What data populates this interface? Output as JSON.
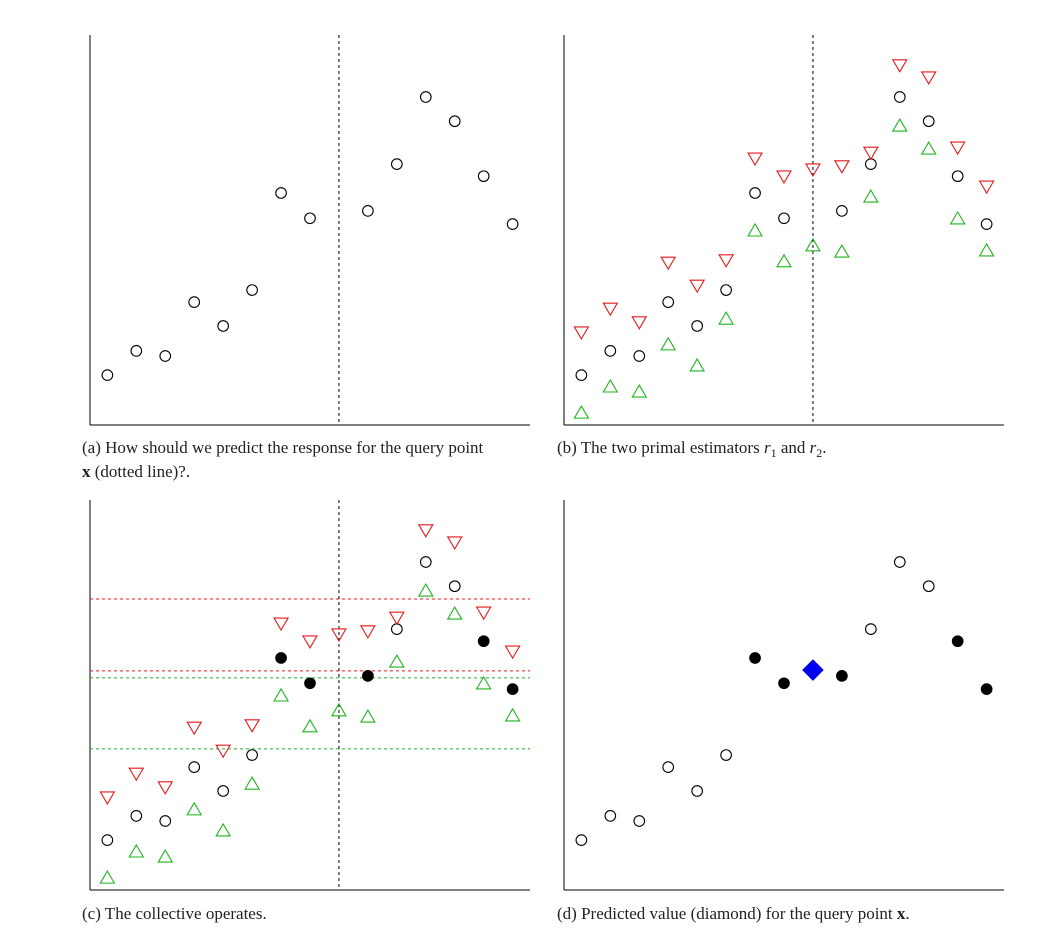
{
  "chart_data": [
    {
      "type": "scatter",
      "caption": [
        "(a) How should we predict the response for the query point ",
        "x",
        " (dotted line)?."
      ],
      "xlim": [
        0.4,
        15.6
      ],
      "ylim": [
        0,
        100
      ],
      "query_x": 9,
      "series": [
        {
          "marker": "circle",
          "color": "#000000",
          "filled": false,
          "x": [
            1,
            2,
            3,
            4,
            5,
            6,
            7,
            8,
            10,
            11,
            12,
            13,
            14,
            15
          ],
          "values": [
            12.8,
            19,
            17.7,
            31.5,
            25.4,
            34.6,
            59.5,
            53,
            54.9,
            66.9,
            84.1,
            77.9,
            63.8,
            51.5
          ]
        }
      ]
    },
    {
      "type": "scatter",
      "caption": [
        "(b) The two primal estimators ",
        "r",
        "1",
        " and ",
        "r",
        "2",
        "."
      ],
      "xlim": [
        0.4,
        15.6
      ],
      "ylim": [
        0,
        100
      ],
      "query_x": 9,
      "series": [
        {
          "marker": "circle",
          "color": "#000000",
          "filled": false,
          "x": [
            1,
            2,
            3,
            4,
            5,
            6,
            7,
            8,
            10,
            11,
            12,
            13,
            14,
            15
          ],
          "values": [
            12.8,
            19,
            17.7,
            31.5,
            25.4,
            34.6,
            59.5,
            53,
            54.9,
            66.9,
            84.1,
            77.9,
            63.8,
            51.5
          ]
        },
        {
          "marker": "triangle-down",
          "color": "#e41a1c",
          "filled": false,
          "x": [
            1,
            2,
            3,
            4,
            5,
            6,
            7,
            8,
            9,
            10,
            11,
            12,
            13,
            14,
            15
          ],
          "values": [
            23.6,
            29.7,
            26.2,
            41.5,
            35.6,
            42.1,
            68.2,
            63.6,
            65.4,
            66.2,
            69.7,
            92.1,
            89,
            71,
            61
          ]
        },
        {
          "marker": "triangle-up",
          "color": "#1fb51f",
          "filled": false,
          "x": [
            1,
            2,
            3,
            4,
            5,
            6,
            7,
            8,
            9,
            10,
            11,
            12,
            13,
            14,
            15
          ],
          "values": [
            3.3,
            10,
            8.7,
            20.8,
            15.4,
            27.4,
            50,
            42.1,
            46.2,
            44.6,
            58.7,
            76.9,
            71,
            53.1,
            44.9
          ]
        }
      ]
    },
    {
      "type": "scatter",
      "caption": [
        "(c) The collective operates."
      ],
      "xlim": [
        0.4,
        15.6
      ],
      "ylim": [
        0,
        100
      ],
      "query_x": 9,
      "hlines": [
        {
          "value": 74.6,
          "color": "#e41a1c"
        },
        {
          "value": 56.2,
          "color": "#e41a1c"
        },
        {
          "value": 54.4,
          "color": "#1fb51f"
        },
        {
          "value": 36.2,
          "color": "#1fb51f"
        }
      ],
      "series": [
        {
          "marker": "circle",
          "color": "#000000",
          "filled": false,
          "x": [
            1,
            2,
            3,
            4,
            5,
            6,
            11,
            12,
            13
          ],
          "values": [
            12.8,
            19,
            17.7,
            31.5,
            25.4,
            34.6,
            66.9,
            84.1,
            77.9
          ]
        },
        {
          "marker": "circle",
          "color": "#000000",
          "filled": true,
          "x": [
            7,
            8,
            10,
            14,
            15
          ],
          "values": [
            59.5,
            53,
            54.9,
            63.8,
            51.5
          ]
        },
        {
          "marker": "triangle-down",
          "color": "#e41a1c",
          "filled": false,
          "x": [
            1,
            2,
            3,
            4,
            5,
            6,
            7,
            8,
            9,
            10,
            11,
            12,
            13,
            14,
            15
          ],
          "values": [
            23.6,
            29.7,
            26.2,
            41.5,
            35.6,
            42.1,
            68.2,
            63.6,
            65.4,
            66.2,
            69.7,
            92.1,
            89,
            71,
            61
          ]
        },
        {
          "marker": "triangle-up",
          "color": "#1fb51f",
          "filled": false,
          "x": [
            1,
            2,
            3,
            4,
            5,
            6,
            7,
            8,
            9,
            10,
            11,
            12,
            13,
            14,
            15
          ],
          "values": [
            3.3,
            10,
            8.7,
            20.8,
            15.4,
            27.4,
            50,
            42.1,
            46.2,
            44.6,
            58.7,
            76.9,
            71,
            53.1,
            44.9
          ]
        }
      ]
    },
    {
      "type": "scatter",
      "caption": [
        "(d) Predicted value (diamond) for the query point ",
        "x",
        "."
      ],
      "xlim": [
        0.4,
        15.6
      ],
      "ylim": [
        0,
        100
      ],
      "series": [
        {
          "marker": "circle",
          "color": "#000000",
          "filled": false,
          "x": [
            1,
            2,
            3,
            4,
            5,
            6,
            11,
            12,
            13
          ],
          "values": [
            12.8,
            19,
            17.7,
            31.5,
            25.4,
            34.6,
            66.9,
            84.1,
            77.9
          ]
        },
        {
          "marker": "circle",
          "color": "#000000",
          "filled": true,
          "x": [
            7,
            8,
            10,
            14,
            15
          ],
          "values": [
            59.5,
            53,
            54.9,
            63.8,
            51.5
          ]
        },
        {
          "marker": "diamond",
          "color": "#0000ee",
          "filled": true,
          "x": [
            9
          ],
          "values": [
            56.4
          ]
        }
      ]
    }
  ]
}
